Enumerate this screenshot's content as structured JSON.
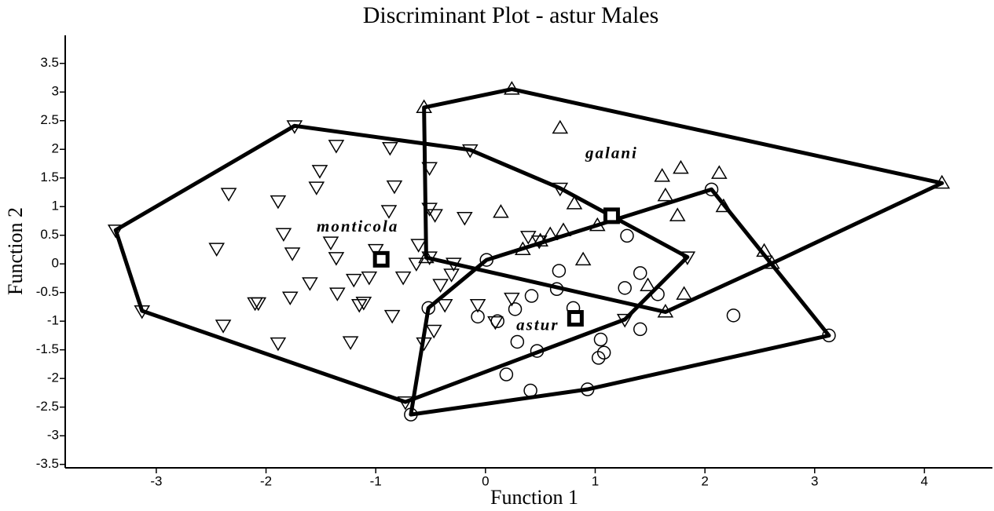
{
  "chart_data": {
    "type": "scatter",
    "title": "Discriminant Plot - astur Males",
    "xlabel": "Function 1",
    "ylabel": "Function 2",
    "xlim": [
      -3.83,
      4.62
    ],
    "ylim": [
      -3.56,
      3.99
    ],
    "xticks": [
      -3,
      -2,
      -1,
      0,
      1,
      2,
      3,
      4
    ],
    "yticks": [
      -3.5,
      -3,
      -2.5,
      -2,
      -1.5,
      -1,
      -0.5,
      0,
      0.5,
      1,
      1.5,
      2,
      2.5,
      3,
      3.5
    ],
    "hull": true,
    "series": [
      {
        "name": "monticola",
        "marker": "triangle-down",
        "color": "#000000",
        "x": [
          -3.37,
          -1.74,
          -0.14,
          0.68,
          1.84,
          -0.73,
          -3.13,
          -1.36,
          -0.87,
          -1.51,
          -1.54,
          -2.34,
          -1.89,
          -0.83,
          -0.88,
          -0.51,
          -0.51,
          -0.46,
          -0.19,
          -1.84,
          -1.41,
          -2.45,
          -1.76,
          -1.36,
          -1.0,
          -0.61,
          -0.63,
          -0.51,
          -0.29,
          -0.31,
          -1.6,
          -1.2,
          -1.06,
          -0.75,
          -0.41,
          -1.35,
          -1.78,
          -2.1,
          -2.07,
          -1.11,
          -1.15,
          -0.37,
          -0.85,
          -0.07,
          0.09,
          0.24,
          -2.39,
          -1.89,
          -1.23,
          -0.47,
          -0.56,
          1.27,
          0.49,
          0.39
        ],
        "y": [
          0.59,
          2.41,
          1.99,
          1.32,
          0.12,
          -2.41,
          -0.82,
          2.07,
          2.03,
          1.63,
          1.34,
          1.23,
          1.1,
          1.36,
          0.93,
          1.68,
          0.97,
          0.86,
          0.81,
          0.53,
          0.38,
          0.27,
          0.19,
          0.11,
          0.25,
          0.34,
          0.01,
          0.12,
          0.01,
          -0.18,
          -0.33,
          -0.27,
          -0.23,
          -0.23,
          -0.36,
          -0.51,
          -0.58,
          -0.68,
          -0.68,
          -0.67,
          -0.71,
          -0.71,
          -0.9,
          -0.71,
          -1.01,
          -0.6,
          -1.07,
          -1.38,
          -1.36,
          -1.16,
          -1.38,
          -0.97,
          0.4,
          0.48
        ],
        "centroid": [
          -0.95,
          0.08
        ]
      },
      {
        "name": "galani",
        "marker": "triangle-up",
        "color": "#000000",
        "x": [
          -0.56,
          0.24,
          4.16,
          1.64,
          -0.54,
          0.68,
          1.61,
          1.78,
          2.13,
          1.64,
          2.17,
          1.75,
          0.81,
          0.14,
          1.02,
          0.71,
          0.59,
          0.5,
          0.34,
          0.89,
          1.48,
          1.81,
          2.54,
          2.61
        ],
        "y": [
          2.73,
          3.05,
          1.41,
          -0.84,
          0.11,
          2.37,
          1.53,
          1.67,
          1.58,
          1.19,
          1.0,
          0.84,
          1.05,
          0.9,
          0.67,
          0.58,
          0.51,
          0.4,
          0.25,
          0.07,
          -0.38,
          -0.53,
          0.22,
          0.01
        ],
        "centroid": [
          1.15,
          0.84
        ]
      },
      {
        "name": "astur",
        "marker": "circle",
        "color": "#000000",
        "x": [
          -0.68,
          -0.52,
          0.01,
          2.06,
          3.13,
          0.93,
          1.29,
          0.67,
          0.65,
          1.41,
          1.27,
          1.57,
          0.8,
          2.26,
          -0.07,
          0.11,
          0.42,
          0.27,
          0.29,
          1.05,
          1.41,
          0.47,
          1.08,
          1.03,
          0.19,
          0.41
        ],
        "y": [
          -2.63,
          -0.77,
          0.07,
          1.3,
          -1.25,
          -2.19,
          0.49,
          -0.12,
          -0.44,
          -0.16,
          -0.42,
          -0.53,
          -0.77,
          -0.9,
          -0.92,
          -1.0,
          -0.56,
          -0.79,
          -1.36,
          -1.32,
          -1.14,
          -1.52,
          -1.55,
          -1.64,
          -1.93,
          -2.21
        ],
        "centroid": [
          0.82,
          -0.95
        ]
      }
    ]
  }
}
